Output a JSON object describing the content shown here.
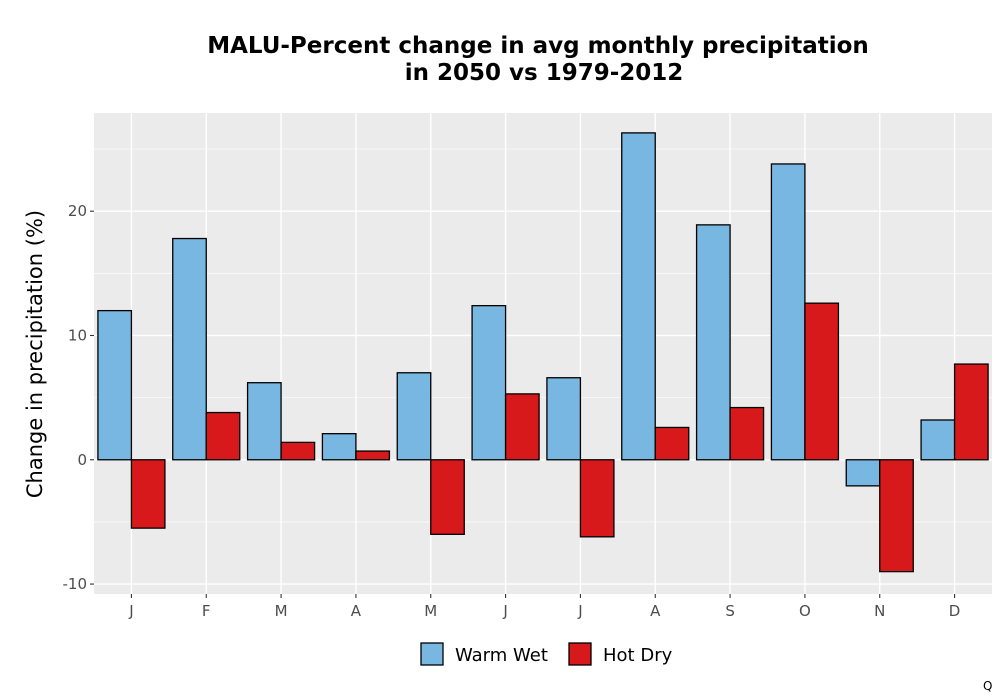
{
  "chart_data": {
    "type": "bar",
    "title_lines": [
      "MALU-Percent change in avg monthly precipitation",
      "in 2050 vs 1979-2012"
    ],
    "xlabel": "",
    "ylabel": "Change in precipitation (%)",
    "categories": [
      "J",
      "F",
      "M",
      "A",
      "M",
      "J",
      "J",
      "A",
      "S",
      "O",
      "N",
      "D"
    ],
    "series": [
      {
        "name": "Warm Wet",
        "color": "#77b7e1",
        "values": [
          12.0,
          17.8,
          6.2,
          2.1,
          7.0,
          12.4,
          6.6,
          26.3,
          18.9,
          23.8,
          -2.1,
          3.2
        ]
      },
      {
        "name": "Hot Dry",
        "color": "#d7191c",
        "values": [
          -5.5,
          3.8,
          1.4,
          0.7,
          -6.0,
          5.3,
          -6.2,
          2.6,
          4.2,
          12.6,
          -9.0,
          7.7
        ]
      }
    ],
    "ylim": [
      -10.8,
      27.9
    ],
    "yticks": [
      -10,
      0,
      10,
      20
    ],
    "grid": true,
    "legend_position": "bottom"
  },
  "corner_mark": "Q"
}
